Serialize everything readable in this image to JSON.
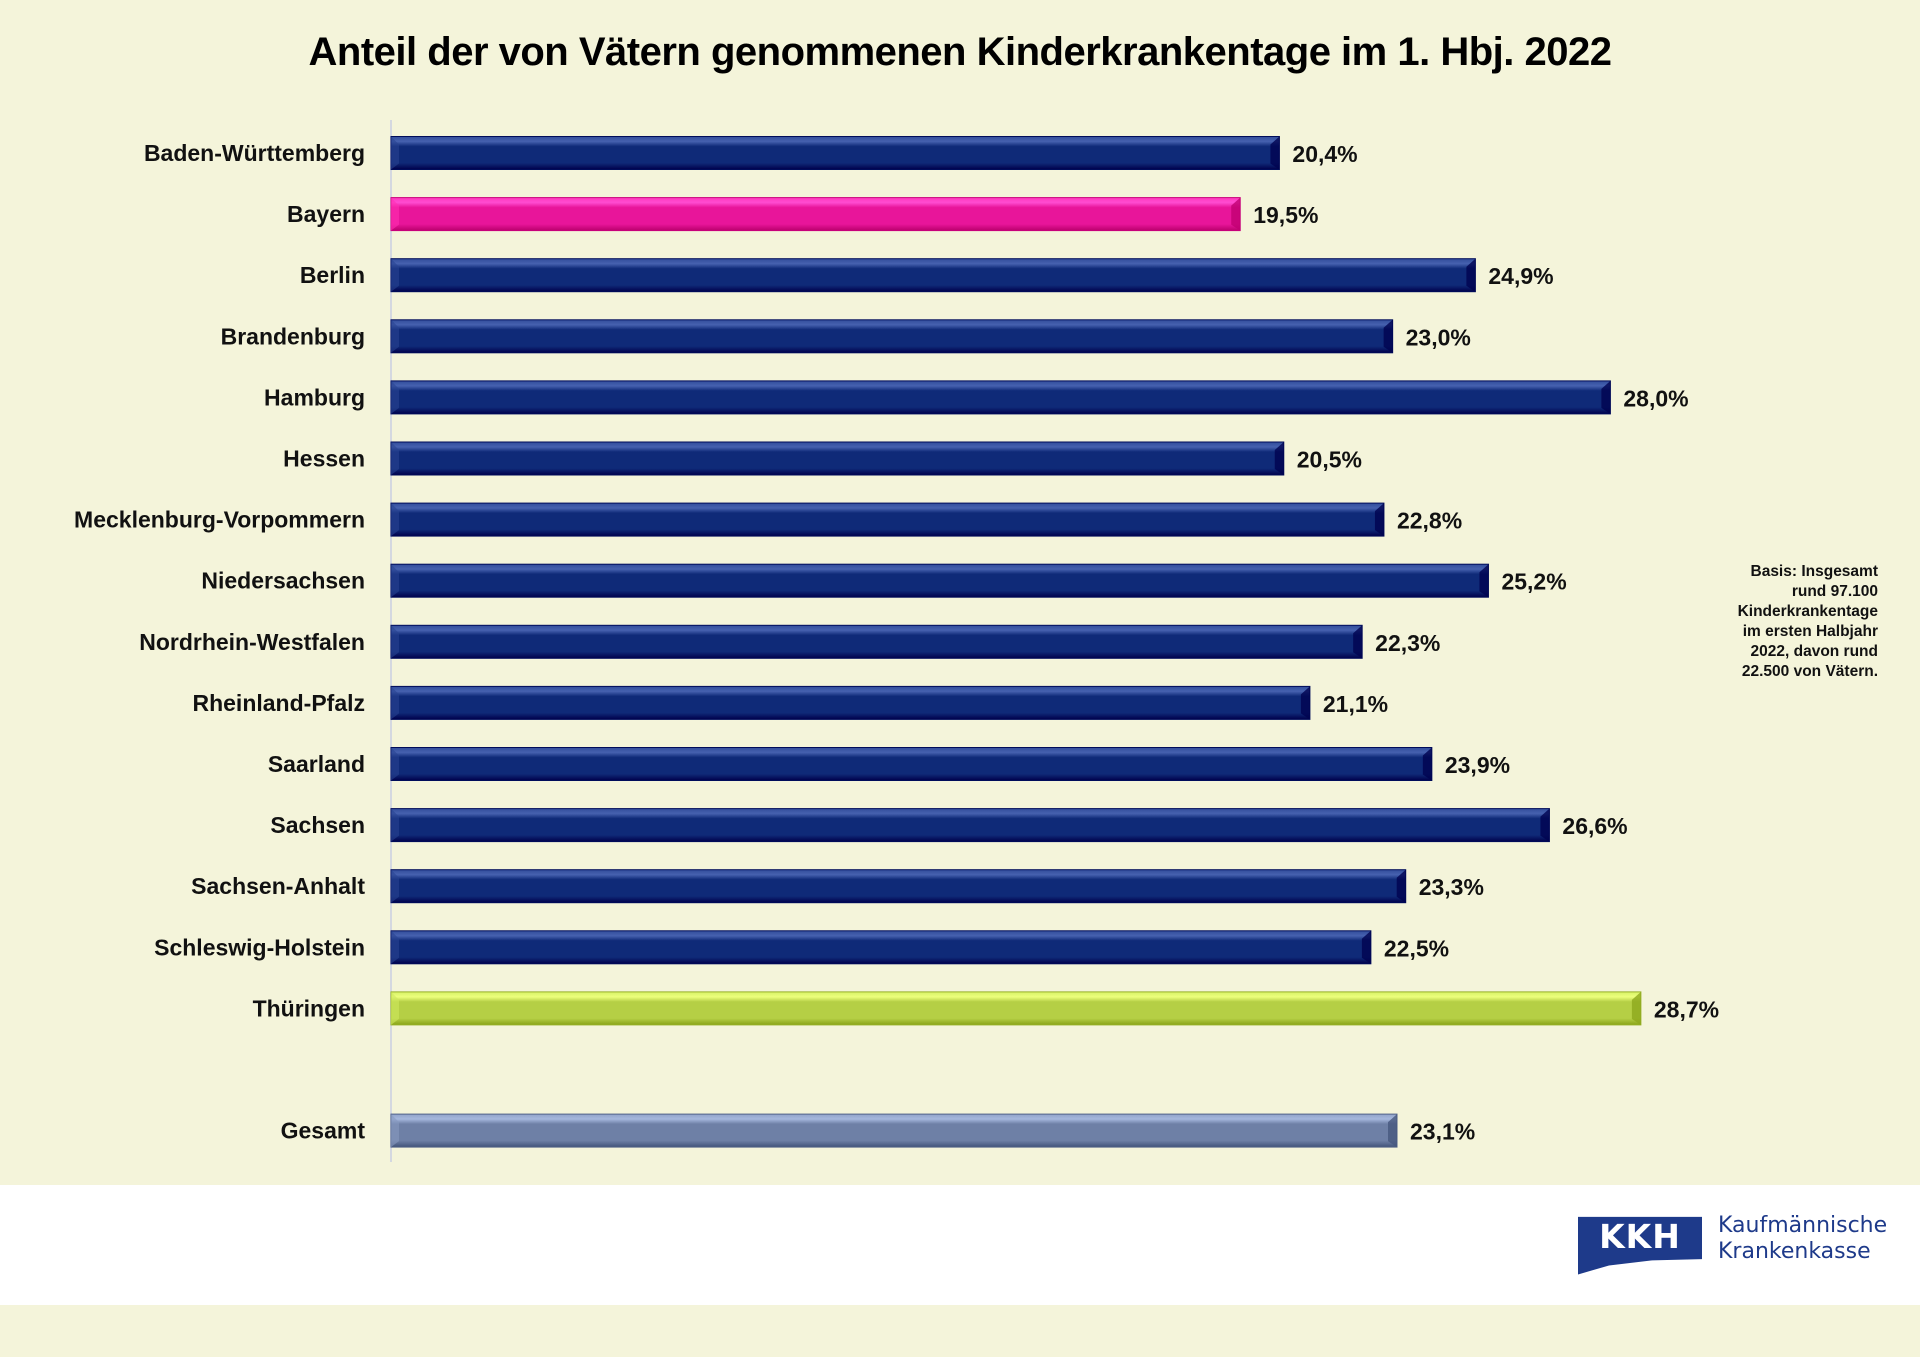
{
  "chart_data": {
    "type": "bar",
    "orientation": "horizontal",
    "title": "Anteil der von Vätern genommenen Kinderkrankentage im 1. Hbj. 2022",
    "xlabel": "",
    "ylabel": "",
    "xlim": [
      0,
      30
    ],
    "grid": false,
    "unit": "%",
    "categories": [
      "Baden-Württemberg",
      "Bayern",
      "Berlin",
      "Brandenburg",
      "Hamburg",
      "Hessen",
      "Mecklenburg-Vorpommern",
      "Niedersachsen",
      "Nordrhein-Westfalen",
      "Rheinland-Pfalz",
      "Saarland",
      "Sachsen",
      "Sachsen-Anhalt",
      "Schleswig-Holstein",
      "Thüringen",
      "Gesamt"
    ],
    "values": [
      20.4,
      19.5,
      24.9,
      23.0,
      28.0,
      20.5,
      22.8,
      25.2,
      22.3,
      21.1,
      23.9,
      26.6,
      23.3,
      22.5,
      28.7,
      23.1
    ],
    "value_labels": [
      "20,4%",
      "19,5%",
      "24,9%",
      "23,0%",
      "28,0%",
      "20,5%",
      "22,8%",
      "25,2%",
      "22,3%",
      "21,1%",
      "23,9%",
      "26,6%",
      "23,3%",
      "22,5%",
      "28,7%",
      "23,1%"
    ],
    "bar_colors": [
      "#0F2A78",
      "#E8159A",
      "#0F2A78",
      "#0F2A78",
      "#0F2A78",
      "#0F2A78",
      "#0F2A78",
      "#0F2A78",
      "#0F2A78",
      "#0F2A78",
      "#0F2A78",
      "#0F2A78",
      "#0F2A78",
      "#0F2A78",
      "#B5CF45",
      "#6E80A6"
    ],
    "highlights": {
      "lowest": "Bayern",
      "highest": "Thüringen",
      "total": "Gesamt"
    }
  },
  "note": {
    "lines": [
      "Basis: Insgesamt",
      "rund 97.100",
      "Kinderkrankentage",
      "im ersten Halbjahr",
      "2022, davon rund",
      "22.500 von Vätern."
    ]
  },
  "logo": {
    "abbr": "KKH",
    "line1": "Kaufmännische",
    "line2": "Krankenkasse",
    "color": "#1E3A8A"
  },
  "colors": {
    "background": "#F4F4DA",
    "band": "#FFFFFF",
    "axis": "#D4D8E0"
  }
}
